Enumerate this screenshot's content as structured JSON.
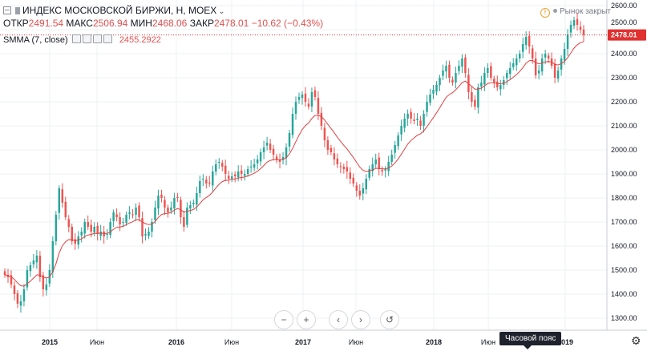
{
  "header": {
    "title": "ИНДЕКС МОСКОВСКОЙ БИРЖИ, Н, MOEX",
    "open_label": "ОТКР",
    "open_value": "2491.54",
    "high_label": "МАКС",
    "high_value": "2506.94",
    "low_label": "МИН",
    "low_value": "2468.06",
    "close_label": "ЗАКР",
    "close_value": "2478.01",
    "change": "−10.62 (−0.43%)",
    "market_status": "Рынок закрыт"
  },
  "indicator": {
    "label": "SMMA (7, close)",
    "value": "2455.2922",
    "color": "#e04040"
  },
  "nav": {
    "minus": "−",
    "plus": "+",
    "left": "‹",
    "right": "›",
    "reset": "↺"
  },
  "tooltip": {
    "label": "Часовой пояс"
  },
  "colors": {
    "up": "#26a69a",
    "down": "#ef5350",
    "price_line": "#e03030"
  },
  "chart_data": {
    "type": "candlestick",
    "y_ticks": [
      "2600.00",
      "2500.00",
      "2400.00",
      "2300.00",
      "2200.00",
      "2100.00",
      "2000.00",
      "1900.00",
      "1800.00",
      "1700.00",
      "1600.00",
      "1500.00",
      "1400.00",
      "1300.00"
    ],
    "ylim": [
      1270,
      2620
    ],
    "x_ticks": [
      "2015",
      "Июн",
      "2016",
      "Июн",
      "2017",
      "Июн",
      "2018",
      "Июн",
      "2019"
    ],
    "last_price": "2478.01",
    "series": [
      {
        "name": "price",
        "values": [
          1480,
          1470,
          1440,
          1400,
          1360,
          1370,
          1420,
          1500,
          1520,
          1540,
          1560,
          1470,
          1420,
          1440,
          1500,
          1620,
          1730,
          1840,
          1780,
          1720,
          1680,
          1620,
          1610,
          1640,
          1660,
          1700,
          1680,
          1660,
          1680,
          1650,
          1660,
          1640,
          1650,
          1700,
          1740,
          1720,
          1690,
          1700,
          1730,
          1740,
          1730,
          1760,
          1720,
          1640,
          1650,
          1660,
          1700,
          1760,
          1810,
          1800,
          1760,
          1740,
          1760,
          1800,
          1800,
          1720,
          1680,
          1760,
          1770,
          1780,
          1820,
          1870,
          1880,
          1860,
          1860,
          1910,
          1940,
          1950,
          1930,
          1900,
          1880,
          1890,
          1890,
          1910,
          1900,
          1900,
          1920,
          1930,
          1940,
          1960,
          1990,
          2010,
          2030,
          2000,
          1980,
          1960,
          1950,
          1970,
          2010,
          2070,
          2150,
          2200,
          2220,
          2230,
          2200,
          2180,
          2240,
          2220,
          2150,
          2100,
          2040,
          2000,
          1990,
          1960,
          1940,
          1930,
          1920,
          1910,
          1880,
          1860,
          1830,
          1810,
          1840,
          1880,
          1920,
          1940,
          1960,
          1920,
          1910,
          1920,
          1950,
          1980,
          2020,
          2060,
          2100,
          2130,
          2150,
          2130,
          2120,
          2130,
          2100,
          2150,
          2200,
          2230,
          2250,
          2270,
          2300,
          2330,
          2350,
          2300,
          2280,
          2320,
          2350,
          2380,
          2320,
          2240,
          2200,
          2180,
          2260,
          2280,
          2320,
          2340,
          2300,
          2280,
          2260,
          2270,
          2290,
          2320,
          2340,
          2360,
          2380,
          2400,
          2440,
          2470,
          2430,
          2380,
          2310,
          2330,
          2380,
          2400,
          2380,
          2350,
          2300,
          2330,
          2380,
          2420,
          2480,
          2520,
          2540,
          2520,
          2500,
          2478
        ]
      },
      {
        "name": "SMMA (7, close)",
        "values": [
          1480,
          1478,
          1472,
          1461,
          1446,
          1435,
          1433,
          1443,
          1454,
          1467,
          1480,
          1479,
          1471,
          1467,
          1471,
          1493,
          1526,
          1571,
          1601,
          1618,
          1627,
          1626,
          1623,
          1625,
          1630,
          1640,
          1646,
          1648,
          1653,
          1652,
          1654,
          1652,
          1652,
          1659,
          1670,
          1678,
          1679,
          1682,
          1689,
          1696,
          1701,
          1709,
          1710,
          1700,
          1693,
          1689,
          1691,
          1702,
          1719,
          1731,
          1735,
          1736,
          1740,
          1749,
          1756,
          1751,
          1741,
          1744,
          1748,
          1752,
          1762,
          1777,
          1792,
          1802,
          1811,
          1825,
          1842,
          1857,
          1868,
          1873,
          1874,
          1877,
          1879,
          1883,
          1885,
          1887,
          1892,
          1897,
          1903,
          1911,
          1922,
          1935,
          1949,
          1956,
          1959,
          1959,
          1958,
          1960,
          1967,
          1983,
          2006,
          2034,
          2061,
          2085,
          2101,
          2112,
          2130,
          2143,
          2144,
          2138,
          2124,
          2106,
          2089,
          2071,
          2052,
          2035,
          2019,
          2004,
          1986,
          1968,
          1948,
          1928,
          1915,
          1910,
          1912,
          1916,
          1923,
          1923,
          1921,
          1921,
          1925,
          1933,
          1946,
          1962,
          1982,
          2003,
          2024,
          2039,
          2050,
          2061,
          2067,
          2079,
          2096,
          2115,
          2134,
          2154,
          2175,
          2197,
          2219,
          2230,
          2238,
          2250,
          2264,
          2280,
          2286,
          2275,
          2264,
          2252,
          2253,
          2257,
          2266,
          2276,
          2279,
          2279,
          2276,
          2275,
          2277,
          2284,
          2292,
          2302,
          2313,
          2326,
          2342,
          2361,
          2371,
          2372,
          2363,
          2358,
          2361,
          2366,
          2368,
          2365,
          2356,
          2353,
          2359,
          2368,
          2384,
          2403,
          2423,
          2437,
          2446,
          2450
        ]
      }
    ]
  }
}
